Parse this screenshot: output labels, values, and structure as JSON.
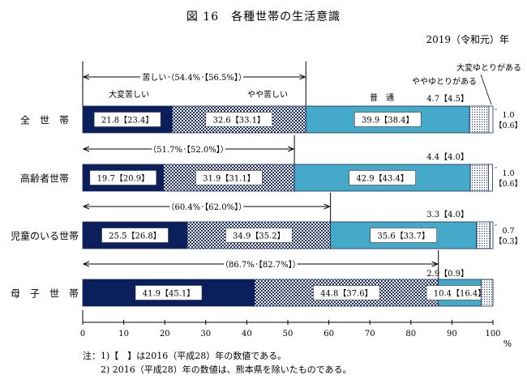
{
  "title": "図 16　各種世帯の生活意識",
  "year_label": "2019（令和元）年",
  "unit_label": "%",
  "header_labels": {
    "kurushii_total": "苦しい（54.4%【56.5%】）",
    "taihen_kurushii": "大変苦しい",
    "yaya_kurushii": "やや苦しい",
    "futsu": "普　通",
    "yaya_yutori": "ややゆとりがある",
    "taihen_yutori": "大変ゆとりがある"
  },
  "notes": [
    "注：1)【　】は2016（平成28）年の数値である。",
    "2) 2016（平成28）年の数値は、熊本県を除いたものである。"
  ],
  "colors": {
    "taihen_kurushii": "#0b1f5c",
    "yaya_kurushii": "checker",
    "futsu": "#45a9c9",
    "yaya_yutori": "dots",
    "taihen_yutori": "#ffffff"
  },
  "chart_data": {
    "type": "bar",
    "orientation": "horizontal-stacked",
    "xlim": [
      0,
      100
    ],
    "xticks": [
      "0",
      "10",
      "20",
      "30",
      "40",
      "50",
      "60",
      "70",
      "80",
      "90",
      "100"
    ],
    "categories": [
      "全　世　帯",
      "高齢者世帯",
      "児童のいる世帯",
      "母　子　世　帯"
    ],
    "kurushii_totals": [
      "",
      "（51.7%【52.0%】）",
      "（60.4%【62.0%】）",
      "（86.7%【82.7%】）"
    ],
    "series": [
      {
        "name": "大変苦しい",
        "values": [
          21.8,
          19.7,
          25.5,
          41.9
        ],
        "labels": [
          "21.8【23.4】",
          "19.7【20.9】",
          "25.5【26.8】",
          "41.9【45.1】"
        ]
      },
      {
        "name": "やや苦しい",
        "values": [
          32.6,
          31.9,
          34.9,
          44.8
        ],
        "labels": [
          "32.6【33.1】",
          "31.9【31.1】",
          "34.9【35.2】",
          "44.8【37.6】"
        ]
      },
      {
        "name": "普　通",
        "values": [
          39.9,
          42.9,
          35.6,
          10.4
        ],
        "labels": [
          "39.9【38.4】",
          "42.9【43.4】",
          "35.6【33.7】",
          "10.4【16.4】"
        ]
      },
      {
        "name": "ややゆとりがある",
        "values": [
          4.7,
          4.4,
          3.3,
          2.9
        ],
        "labels": [
          "4.7【4.5】",
          "4.4【4.0】",
          "3.3【4.0】",
          "2.9【0.9】"
        ]
      },
      {
        "name": "大変ゆとりがある",
        "values": [
          1.0,
          1.0,
          0.7,
          0.0
        ],
        "labels": [
          "1.0\n【0.6】",
          "1.0\n【0.6】",
          "0.7\n【0.3】",
          ""
        ]
      }
    ]
  }
}
